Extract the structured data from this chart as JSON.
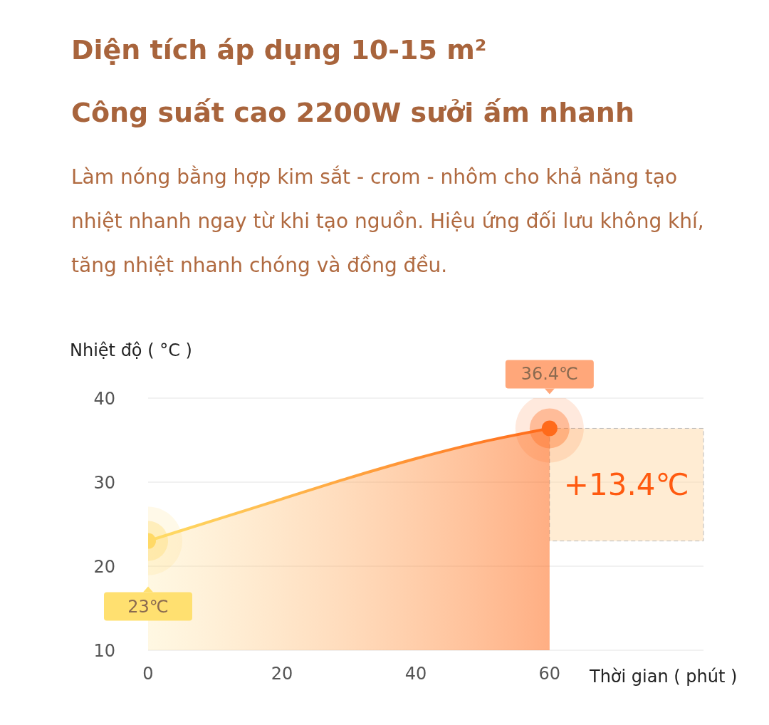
{
  "chart_data": {
    "type": "area",
    "title": "Diện tích áp dụng 10-15 m²",
    "subtitle": "Công suất cao 2200W sưởi ấm nhanh",
    "annotations": [
      "Làm nóng bằng hợp kim sắt - crom - nhôm cho khả năng tạo nhiệt nhanh ngay từ khi tạo nguồn. Hiệu ứng đối lưu không khí, tăng nhiệt nhanh chóng và đồng đều."
    ],
    "ylabel": "Nhiệt độ ( °C )",
    "xlabel": "Thời gian ( phút )",
    "x": [
      0,
      10,
      20,
      30,
      40,
      50,
      60
    ],
    "series": [
      {
        "color": "#ff6a1a",
        "values": [
          23,
          25.5,
          28,
          30.5,
          32.8,
          34.8,
          36.4
        ],
        "value_labels": [
          "23℃",
          null,
          null,
          null,
          null,
          null,
          "36.4℃"
        ]
      }
    ],
    "xlim": [
      0,
      83
    ],
    "xticks": [
      0,
      20,
      40,
      60
    ],
    "ylim": [
      10,
      40
    ],
    "yticks": [
      10,
      20,
      30,
      40
    ],
    "bands": [
      {
        "axis": "y",
        "from": 23,
        "to": 36.4,
        "label": "+13.4℃",
        "color": "#ffd9a8"
      }
    ],
    "grid": "y",
    "line_style": "solid"
  }
}
